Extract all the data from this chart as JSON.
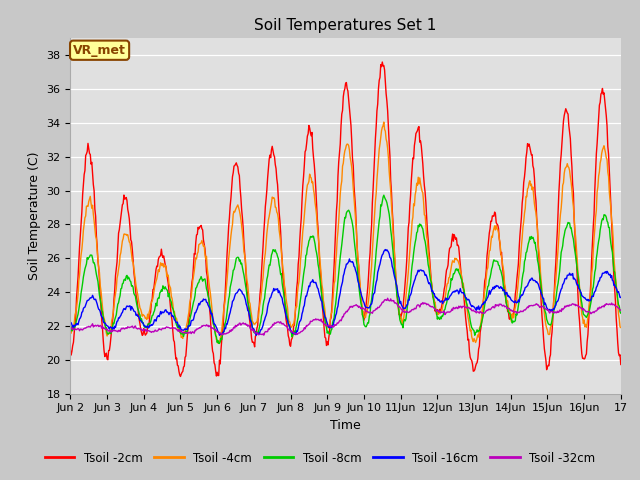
{
  "title": "Soil Temperatures Set 1",
  "xlabel": "Time",
  "ylabel": "Soil Temperature (C)",
  "ylim": [
    18,
    39
  ],
  "yticks": [
    18,
    20,
    22,
    24,
    26,
    28,
    30,
    32,
    34,
    36,
    38
  ],
  "xtick_labels": [
    "Jun 2",
    "Jun 3",
    "Jun 4",
    "Jun 5",
    "Jun 6",
    "Jun 7",
    "Jun 8",
    "Jun 9",
    "Jun 10",
    "11Jun",
    "12Jun",
    "13Jun",
    "14Jun",
    "15Jun",
    "16Jun",
    "17"
  ],
  "series_colors": [
    "#ff0000",
    "#ff8800",
    "#00cc00",
    "#0000ff",
    "#bb00bb"
  ],
  "series_labels": [
    "Tsoil -2cm",
    "Tsoil -4cm",
    "Tsoil -8cm",
    "Tsoil -16cm",
    "Tsoil -32cm"
  ],
  "bg_color": "#e0e0e0",
  "fig_bg_color": "#c8c8c8",
  "vr_met_label": "VR_met",
  "vr_met_bg": "#ffff99",
  "vr_met_border": "#884400",
  "title_fontsize": 11,
  "axis_label_fontsize": 9,
  "tick_fontsize": 8,
  "legend_fontsize": 8.5
}
